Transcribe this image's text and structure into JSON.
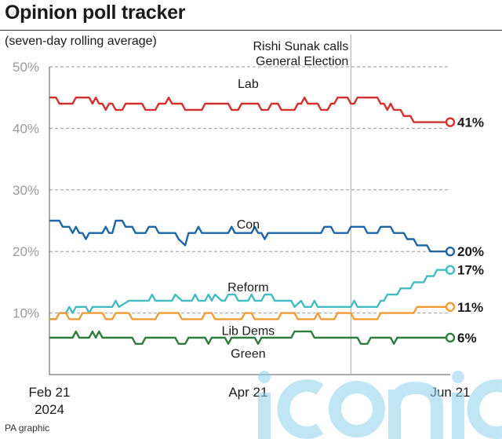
{
  "title": "Opinion poll tracker",
  "subtitle": "(seven-day rolling average)",
  "credit": "PA graphic",
  "watermark": "iconic",
  "chart_data": {
    "type": "line",
    "ylim": [
      0,
      50
    ],
    "yticks": [
      10,
      20,
      30,
      40,
      50
    ],
    "ytick_labels": [
      "10%",
      "20%",
      "30%",
      "40%",
      "50%"
    ],
    "grid": "horizontal dashed",
    "x_range": [
      "2024-02-21",
      "2024-06-21"
    ],
    "xticks": [
      {
        "date": "2024-02-21",
        "label": "Feb 21",
        "label2": "2024"
      },
      {
        "date": "2024-04-21",
        "label": "Apr 21",
        "label2": ""
      },
      {
        "date": "2024-06-21",
        "label": "Jun 21",
        "label2": ""
      }
    ],
    "annotation": {
      "date": "2024-05-22",
      "text": [
        "Rishi Sunak calls",
        "General Election"
      ]
    },
    "series": [
      {
        "name": "Lab",
        "color": "#d2312f",
        "end_label": "41%",
        "name_at": {
          "date": "2024-04-21",
          "value": 47.3
        },
        "values": [
          [
            "2024-02-21",
            45
          ],
          [
            "2024-02-23",
            45
          ],
          [
            "2024-02-24",
            44
          ],
          [
            "2024-02-28",
            44
          ],
          [
            "2024-02-29",
            45
          ],
          [
            "2024-03-04",
            45
          ],
          [
            "2024-03-05",
            44
          ],
          [
            "2024-03-06",
            45
          ],
          [
            "2024-03-07",
            44
          ],
          [
            "2024-03-08",
            44
          ],
          [
            "2024-03-09",
            43
          ],
          [
            "2024-03-10",
            44
          ],
          [
            "2024-03-11",
            44
          ],
          [
            "2024-03-12",
            43
          ],
          [
            "2024-03-14",
            43
          ],
          [
            "2024-03-15",
            44
          ],
          [
            "2024-03-20",
            44
          ],
          [
            "2024-03-21",
            43
          ],
          [
            "2024-03-24",
            43
          ],
          [
            "2024-03-25",
            44
          ],
          [
            "2024-03-27",
            44
          ],
          [
            "2024-03-28",
            45
          ],
          [
            "2024-03-29",
            44
          ],
          [
            "2024-04-01",
            44
          ],
          [
            "2024-04-02",
            43
          ],
          [
            "2024-04-07",
            43
          ],
          [
            "2024-04-08",
            44
          ],
          [
            "2024-04-15",
            44
          ],
          [
            "2024-04-16",
            43
          ],
          [
            "2024-04-18",
            43
          ],
          [
            "2024-04-19",
            44
          ],
          [
            "2024-04-24",
            44
          ],
          [
            "2024-04-25",
            43
          ],
          [
            "2024-04-27",
            43
          ],
          [
            "2024-04-28",
            44
          ],
          [
            "2024-04-30",
            44
          ],
          [
            "2024-05-01",
            43
          ],
          [
            "2024-05-05",
            43
          ],
          [
            "2024-05-06",
            44
          ],
          [
            "2024-05-07",
            44
          ],
          [
            "2024-05-08",
            45
          ],
          [
            "2024-05-09",
            44
          ],
          [
            "2024-05-12",
            44
          ],
          [
            "2024-05-13",
            43
          ],
          [
            "2024-05-15",
            43
          ],
          [
            "2024-05-16",
            44
          ],
          [
            "2024-05-17",
            44
          ],
          [
            "2024-05-18",
            45
          ],
          [
            "2024-05-21",
            45
          ],
          [
            "2024-05-22",
            44
          ],
          [
            "2024-05-23",
            44
          ],
          [
            "2024-05-24",
            45
          ],
          [
            "2024-05-30",
            45
          ],
          [
            "2024-05-31",
            44
          ],
          [
            "2024-06-01",
            44
          ],
          [
            "2024-06-02",
            43
          ],
          [
            "2024-06-03",
            44
          ],
          [
            "2024-06-04",
            43
          ],
          [
            "2024-06-06",
            43
          ],
          [
            "2024-06-07",
            42
          ],
          [
            "2024-06-09",
            42
          ],
          [
            "2024-06-10",
            41
          ],
          [
            "2024-06-21",
            41
          ]
        ]
      },
      {
        "name": "Con",
        "color": "#1d65a6",
        "end_label": "20%",
        "name_at": {
          "date": "2024-04-21",
          "value": 24.5
        },
        "values": [
          [
            "2024-02-21",
            25
          ],
          [
            "2024-02-24",
            25
          ],
          [
            "2024-02-25",
            24
          ],
          [
            "2024-02-27",
            24
          ],
          [
            "2024-02-28",
            23
          ],
          [
            "2024-02-29",
            24
          ],
          [
            "2024-03-01",
            23
          ],
          [
            "2024-03-02",
            23
          ],
          [
            "2024-03-03",
            22
          ],
          [
            "2024-03-04",
            23
          ],
          [
            "2024-03-08",
            23
          ],
          [
            "2024-03-09",
            24
          ],
          [
            "2024-03-10",
            23
          ],
          [
            "2024-03-11",
            23
          ],
          [
            "2024-03-12",
            25
          ],
          [
            "2024-03-14",
            25
          ],
          [
            "2024-03-15",
            24
          ],
          [
            "2024-03-17",
            24
          ],
          [
            "2024-03-18",
            23
          ],
          [
            "2024-03-21",
            23
          ],
          [
            "2024-03-22",
            24
          ],
          [
            "2024-03-24",
            24
          ],
          [
            "2024-03-25",
            23
          ],
          [
            "2024-03-30",
            23
          ],
          [
            "2024-03-31",
            22
          ],
          [
            "2024-04-02",
            21
          ],
          [
            "2024-04-03",
            23
          ],
          [
            "2024-04-05",
            23
          ],
          [
            "2024-04-06",
            24
          ],
          [
            "2024-04-07",
            23
          ],
          [
            "2024-04-15",
            23
          ],
          [
            "2024-04-16",
            24
          ],
          [
            "2024-04-17",
            23
          ],
          [
            "2024-04-22",
            23
          ],
          [
            "2024-04-23",
            24
          ],
          [
            "2024-04-24",
            23
          ],
          [
            "2024-04-25",
            23
          ],
          [
            "2024-04-26",
            22
          ],
          [
            "2024-04-27",
            23
          ],
          [
            "2024-05-13",
            23
          ],
          [
            "2024-05-14",
            24
          ],
          [
            "2024-05-16",
            24
          ],
          [
            "2024-05-17",
            23
          ],
          [
            "2024-05-21",
            23
          ],
          [
            "2024-05-22",
            24
          ],
          [
            "2024-05-26",
            24
          ],
          [
            "2024-05-27",
            23
          ],
          [
            "2024-05-30",
            23
          ],
          [
            "2024-05-31",
            24
          ],
          [
            "2024-06-03",
            24
          ],
          [
            "2024-06-04",
            23
          ],
          [
            "2024-06-07",
            23
          ],
          [
            "2024-06-08",
            22
          ],
          [
            "2024-06-10",
            22
          ],
          [
            "2024-06-11",
            21
          ],
          [
            "2024-06-14",
            21
          ],
          [
            "2024-06-15",
            20
          ],
          [
            "2024-06-21",
            20
          ]
        ]
      },
      {
        "name": "Reform",
        "color": "#41bcc1",
        "end_label": "17%",
        "name_at": {
          "date": "2024-04-21",
          "value": 14.3
        },
        "values": [
          [
            "2024-02-21",
            9
          ],
          [
            "2024-02-23",
            9
          ],
          [
            "2024-02-24",
            10
          ],
          [
            "2024-02-26",
            10
          ],
          [
            "2024-02-27",
            11
          ],
          [
            "2024-02-28",
            10
          ],
          [
            "2024-02-29",
            11
          ],
          [
            "2024-03-03",
            11
          ],
          [
            "2024-03-04",
            10
          ],
          [
            "2024-03-05",
            11
          ],
          [
            "2024-03-11",
            11
          ],
          [
            "2024-03-12",
            12
          ],
          [
            "2024-03-13",
            11
          ],
          [
            "2024-03-16",
            12
          ],
          [
            "2024-03-22",
            12
          ],
          [
            "2024-03-23",
            13
          ],
          [
            "2024-03-24",
            12
          ],
          [
            "2024-03-29",
            12
          ],
          [
            "2024-03-30",
            13
          ],
          [
            "2024-04-01",
            12
          ],
          [
            "2024-04-04",
            12
          ],
          [
            "2024-04-05",
            13
          ],
          [
            "2024-04-06",
            12
          ],
          [
            "2024-04-08",
            12
          ],
          [
            "2024-04-09",
            13
          ],
          [
            "2024-04-10",
            12
          ],
          [
            "2024-04-11",
            13
          ],
          [
            "2024-04-13",
            12
          ],
          [
            "2024-04-14",
            12
          ],
          [
            "2024-04-15",
            13
          ],
          [
            "2024-04-17",
            13
          ],
          [
            "2024-04-18",
            12
          ],
          [
            "2024-04-21",
            12
          ],
          [
            "2024-04-22",
            13
          ],
          [
            "2024-04-23",
            12
          ],
          [
            "2024-04-25",
            12
          ],
          [
            "2024-04-26",
            13
          ],
          [
            "2024-04-28",
            13
          ],
          [
            "2024-04-29",
            12
          ],
          [
            "2024-05-04",
            12
          ],
          [
            "2024-05-05",
            11
          ],
          [
            "2024-05-07",
            12
          ],
          [
            "2024-05-08",
            11
          ],
          [
            "2024-05-10",
            11
          ],
          [
            "2024-05-11",
            12
          ],
          [
            "2024-05-12",
            11
          ],
          [
            "2024-05-22",
            11
          ],
          [
            "2024-05-23",
            12
          ],
          [
            "2024-05-24",
            11
          ],
          [
            "2024-05-30",
            11
          ],
          [
            "2024-05-31",
            12
          ],
          [
            "2024-06-01",
            12
          ],
          [
            "2024-06-02",
            13
          ],
          [
            "2024-06-05",
            13
          ],
          [
            "2024-06-06",
            14
          ],
          [
            "2024-06-09",
            14
          ],
          [
            "2024-06-10",
            15
          ],
          [
            "2024-06-13",
            15
          ],
          [
            "2024-06-14",
            16
          ],
          [
            "2024-06-16",
            16
          ],
          [
            "2024-06-17",
            17
          ],
          [
            "2024-06-21",
            17
          ]
        ]
      },
      {
        "name": "Lib Dems",
        "color": "#f29b37",
        "end_label": "11%",
        "name_at": {
          "date": "2024-04-21",
          "value": 7.2
        },
        "values": [
          [
            "2024-02-21",
            9
          ],
          [
            "2024-02-23",
            9
          ],
          [
            "2024-02-24",
            10
          ],
          [
            "2024-02-26",
            10
          ],
          [
            "2024-02-27",
            9
          ],
          [
            "2024-03-01",
            9
          ],
          [
            "2024-03-02",
            10
          ],
          [
            "2024-03-08",
            10
          ],
          [
            "2024-03-09",
            9
          ],
          [
            "2024-03-11",
            9
          ],
          [
            "2024-03-12",
            10
          ],
          [
            "2024-03-16",
            10
          ],
          [
            "2024-03-17",
            9
          ],
          [
            "2024-03-24",
            9
          ],
          [
            "2024-03-25",
            10
          ],
          [
            "2024-03-31",
            10
          ],
          [
            "2024-04-01",
            9
          ],
          [
            "2024-04-07",
            9
          ],
          [
            "2024-04-08",
            10
          ],
          [
            "2024-04-10",
            10
          ],
          [
            "2024-04-11",
            9
          ],
          [
            "2024-04-19",
            9
          ],
          [
            "2024-04-20",
            10
          ],
          [
            "2024-04-22",
            10
          ],
          [
            "2024-04-23",
            9
          ],
          [
            "2024-04-30",
            9
          ],
          [
            "2024-05-01",
            10
          ],
          [
            "2024-05-05",
            10
          ],
          [
            "2024-05-06",
            9
          ],
          [
            "2024-05-11",
            9
          ],
          [
            "2024-05-12",
            10
          ],
          [
            "2024-05-13",
            9
          ],
          [
            "2024-05-17",
            9
          ],
          [
            "2024-05-18",
            10
          ],
          [
            "2024-05-22",
            10
          ],
          [
            "2024-05-23",
            9
          ],
          [
            "2024-05-30",
            9
          ],
          [
            "2024-05-31",
            10
          ],
          [
            "2024-06-10",
            10
          ],
          [
            "2024-06-11",
            11
          ],
          [
            "2024-06-21",
            11
          ]
        ]
      },
      {
        "name": "Green",
        "color": "#2e7d3c",
        "end_label": "6%",
        "name_at": {
          "date": "2024-04-21",
          "value": 3.5
        },
        "values": [
          [
            "2024-02-21",
            6
          ],
          [
            "2024-02-28",
            6
          ],
          [
            "2024-02-29",
            7
          ],
          [
            "2024-03-01",
            6
          ],
          [
            "2024-03-04",
            6
          ],
          [
            "2024-03-05",
            7
          ],
          [
            "2024-03-06",
            6
          ],
          [
            "2024-03-07",
            7
          ],
          [
            "2024-03-08",
            6
          ],
          [
            "2024-03-17",
            6
          ],
          [
            "2024-03-18",
            5
          ],
          [
            "2024-03-20",
            5
          ],
          [
            "2024-03-21",
            6
          ],
          [
            "2024-03-30",
            6
          ],
          [
            "2024-03-31",
            5
          ],
          [
            "2024-04-02",
            5
          ],
          [
            "2024-04-03",
            6
          ],
          [
            "2024-04-08",
            6
          ],
          [
            "2024-04-09",
            5
          ],
          [
            "2024-04-10",
            6
          ],
          [
            "2024-04-14",
            6
          ],
          [
            "2024-04-15",
            5
          ],
          [
            "2024-04-16",
            6
          ],
          [
            "2024-04-23",
            6
          ],
          [
            "2024-04-24",
            5
          ],
          [
            "2024-04-25",
            6
          ],
          [
            "2024-05-04",
            6
          ],
          [
            "2024-05-05",
            7
          ],
          [
            "2024-05-10",
            7
          ],
          [
            "2024-05-11",
            6
          ],
          [
            "2024-05-24",
            6
          ],
          [
            "2024-05-25",
            5
          ],
          [
            "2024-05-27",
            5
          ],
          [
            "2024-05-28",
            6
          ],
          [
            "2024-06-03",
            6
          ],
          [
            "2024-06-04",
            5
          ],
          [
            "2024-06-05",
            6
          ],
          [
            "2024-06-21",
            6
          ]
        ]
      }
    ]
  }
}
